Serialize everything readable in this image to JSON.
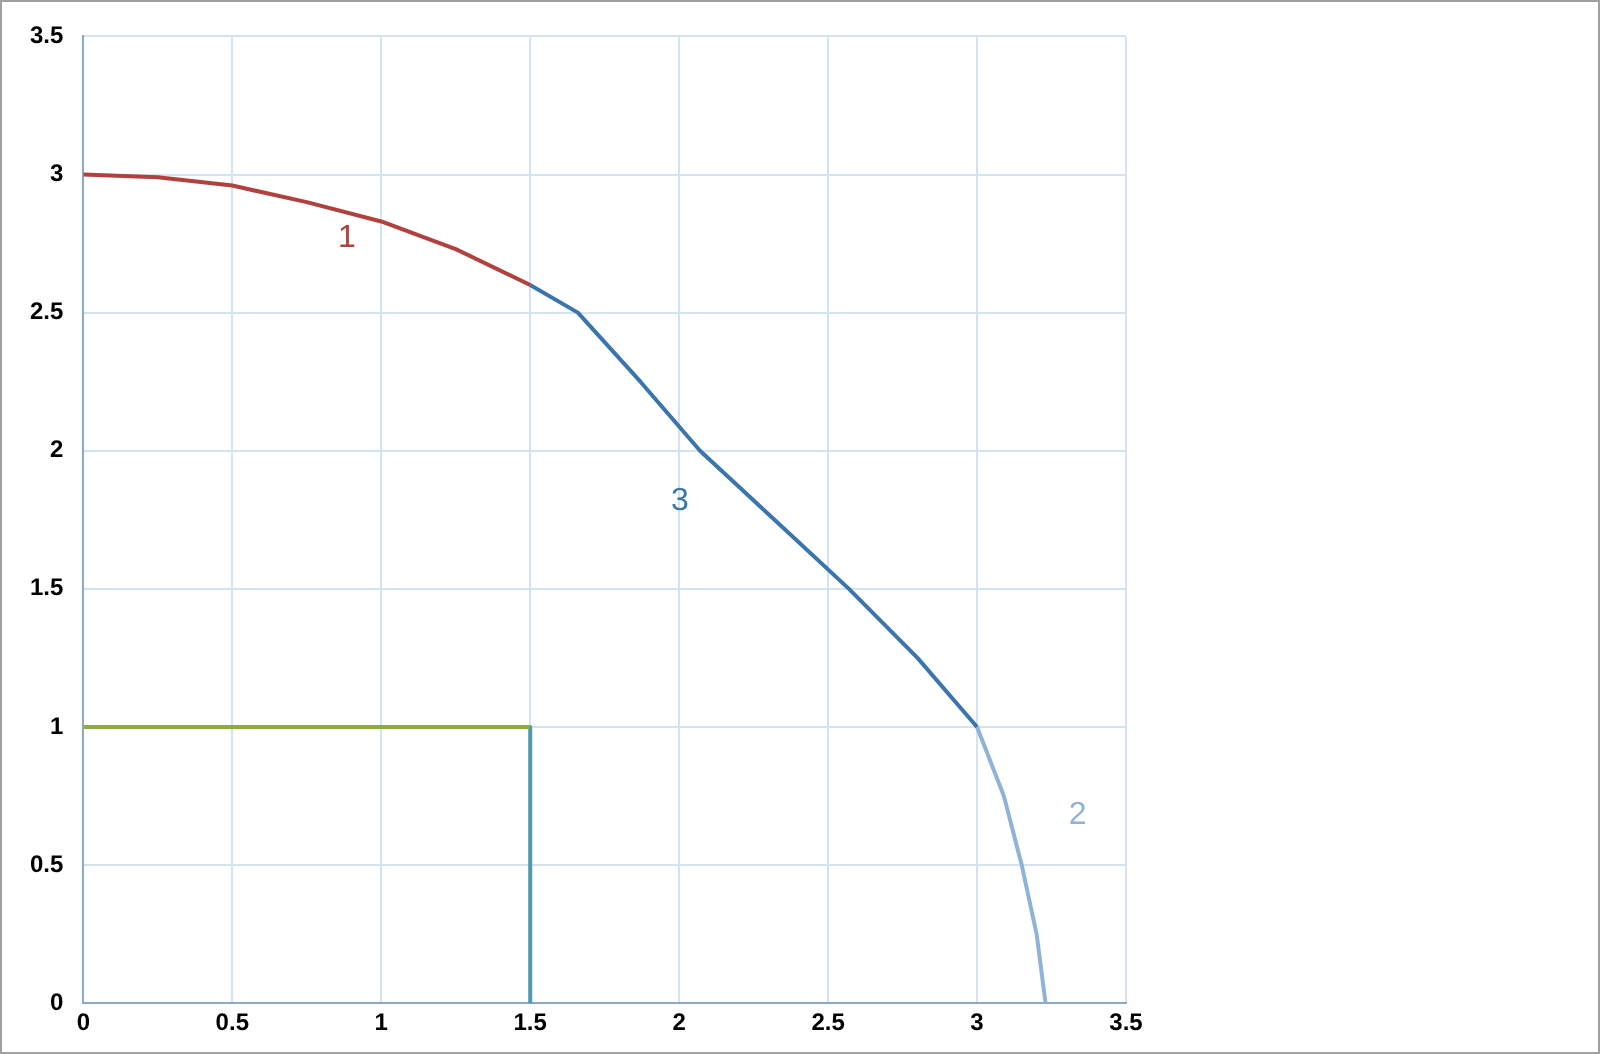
{
  "chart_data": {
    "type": "line",
    "xlim": [
      0,
      3.5
    ],
    "ylim": [
      0,
      3.5
    ],
    "xticks": [
      0,
      0.5,
      1,
      1.5,
      2,
      2.5,
      3,
      3.5
    ],
    "yticks": [
      0,
      0.5,
      1,
      1.5,
      2,
      2.5,
      3,
      3.5
    ],
    "grid": true,
    "legend": false,
    "marker": "none",
    "line_style": "solid",
    "series": [
      {
        "name": "1",
        "color": "#b0413e",
        "x": [
          0,
          0.25,
          0.5,
          0.75,
          1,
          1.25,
          1.5
        ],
        "values": [
          3,
          2.99,
          2.96,
          2.9,
          2.83,
          2.73,
          2.6
        ]
      },
      {
        "name": "3",
        "color": "#3a75ad",
        "x": [
          1.5,
          1.66,
          1.87,
          2.07,
          2.32,
          2.57,
          2.8,
          3
        ],
        "values": [
          2.6,
          2.5,
          2.25,
          2,
          1.75,
          1.5,
          1.25,
          1
        ]
      },
      {
        "name": "2",
        "color": "#8fb3d6",
        "x": [
          3,
          3.09,
          3.15,
          3.2,
          3.23
        ],
        "values": [
          1,
          0.75,
          0.5,
          0.25,
          0
        ]
      },
      {
        "color": "#8fa84a",
        "x": [
          0,
          1.5
        ],
        "values": [
          1,
          1
        ]
      },
      {
        "color": "#4f9ab0",
        "x": [
          1.5,
          1.5
        ],
        "values": [
          1,
          0
        ]
      }
    ]
  }
}
